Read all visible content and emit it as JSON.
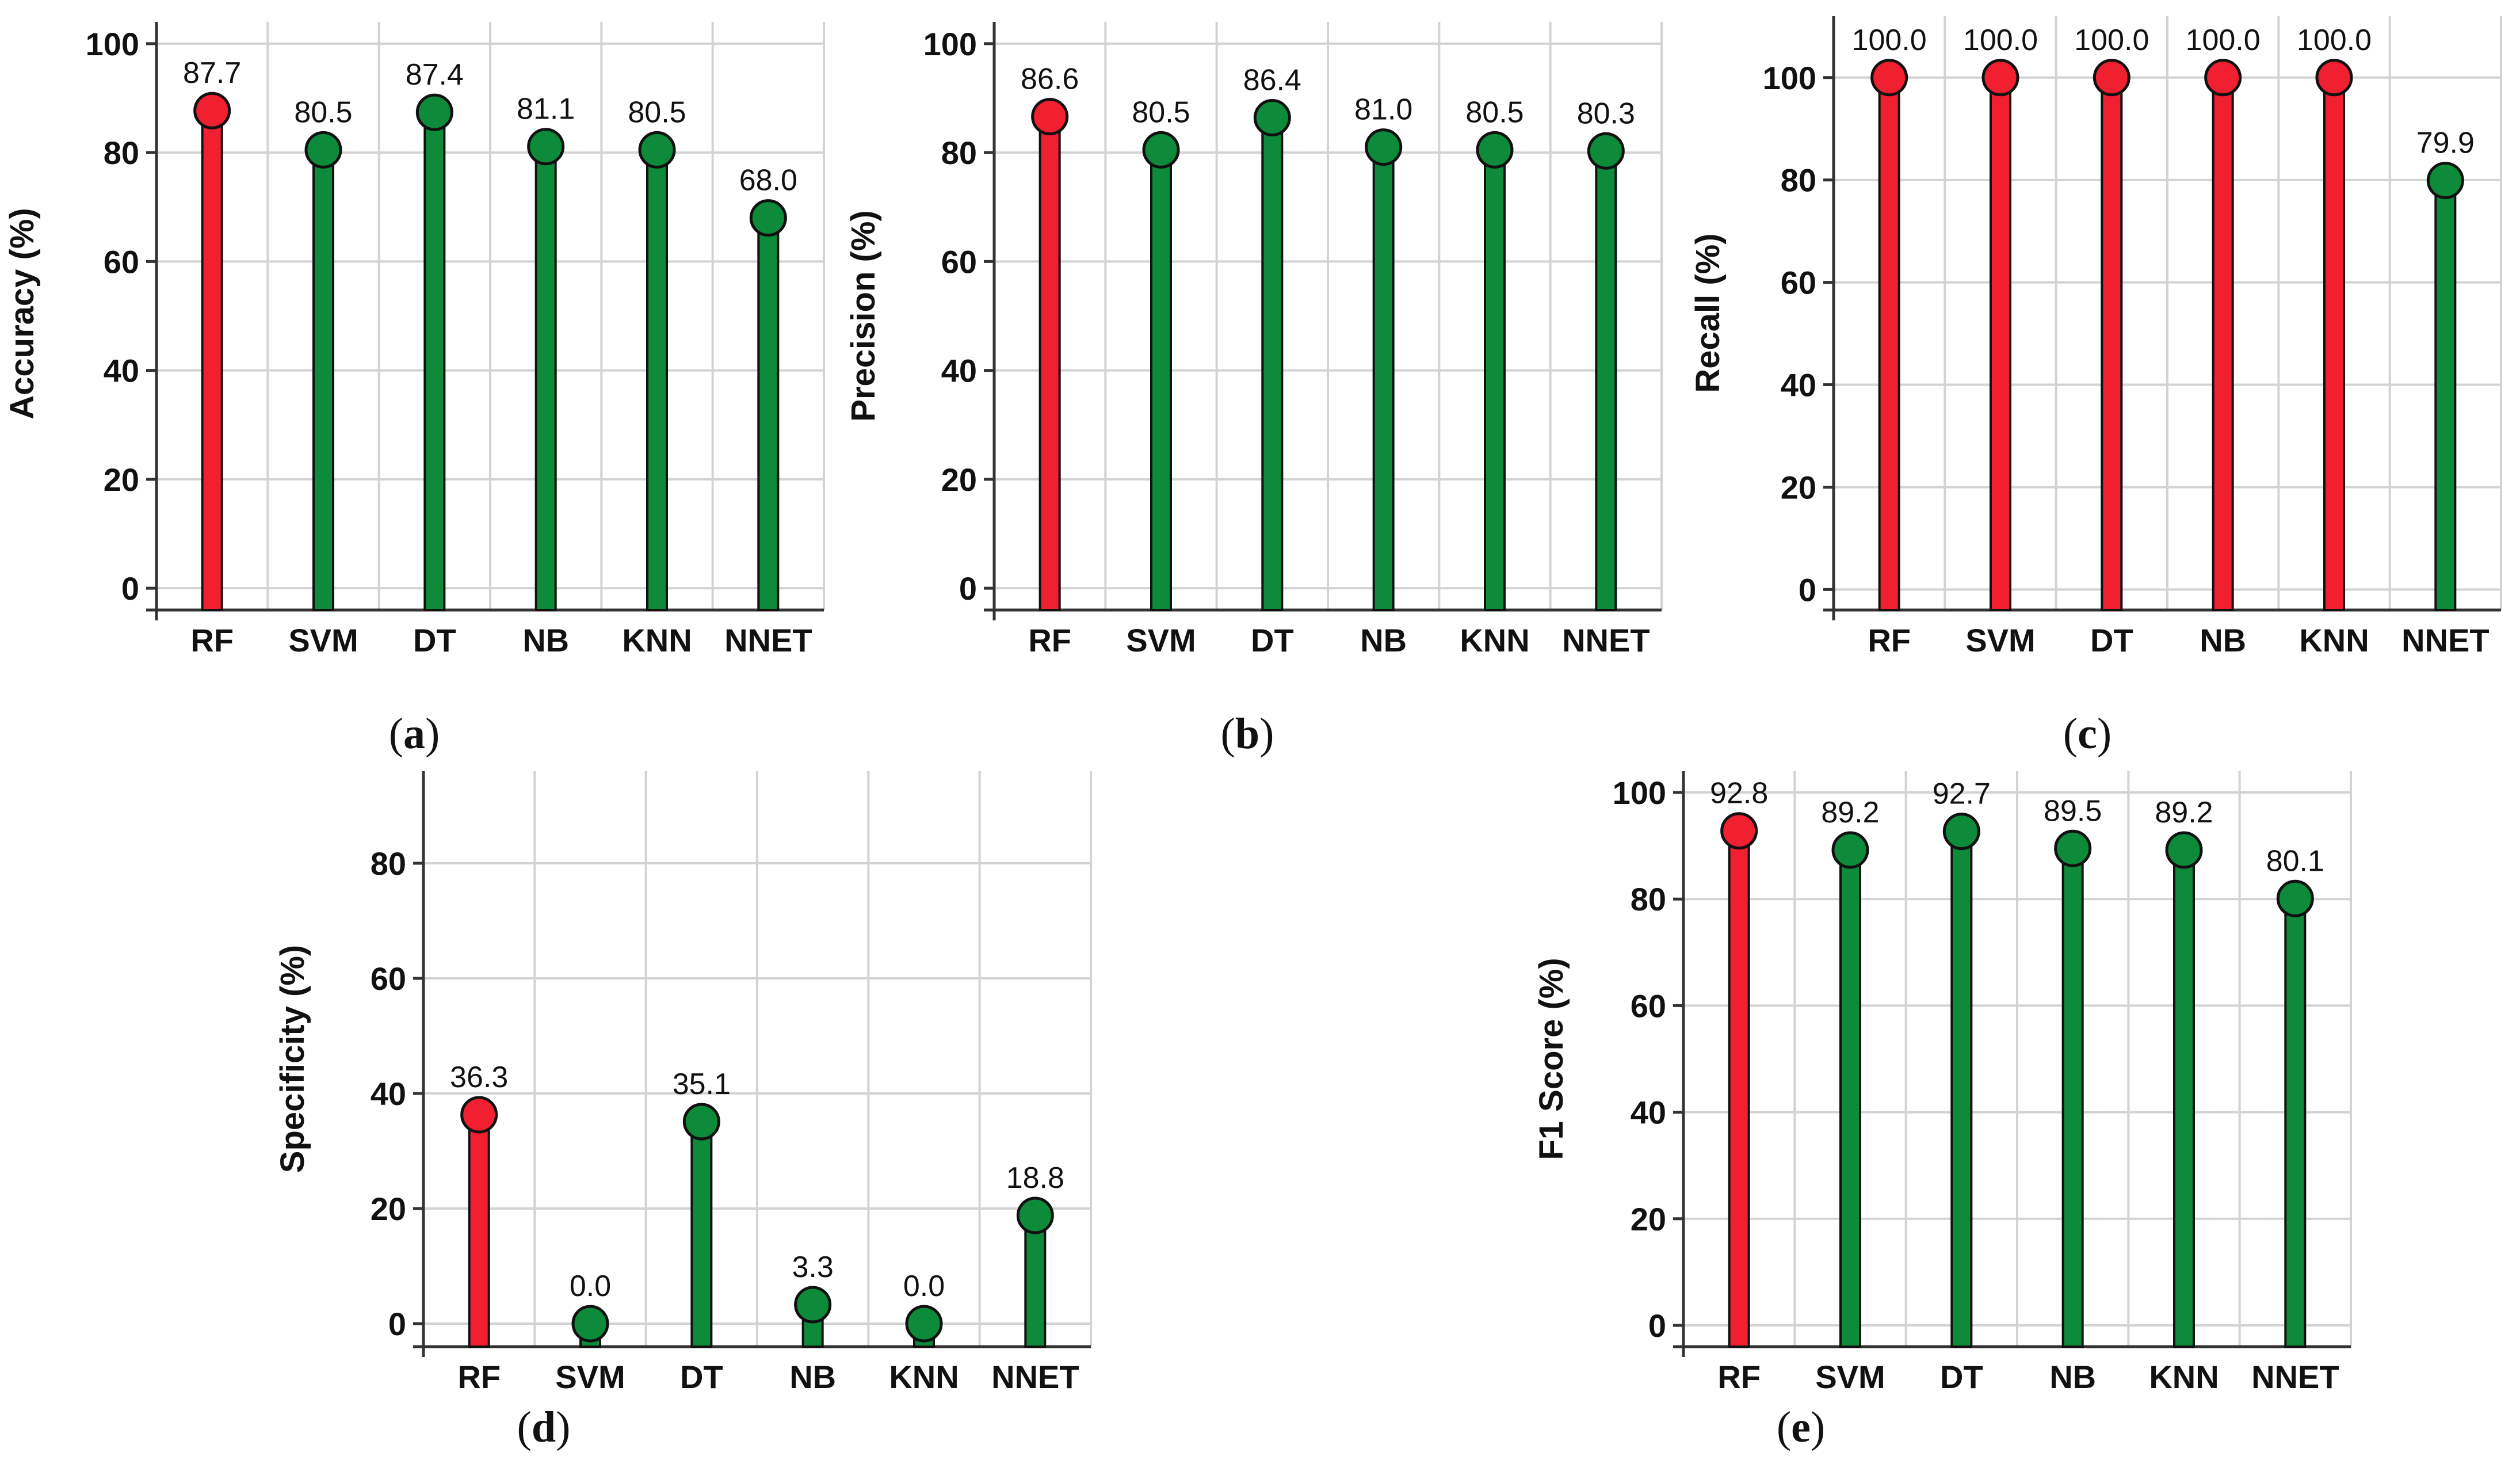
{
  "colors": {
    "highlight": "#f02030",
    "normal": "#0d8a3a",
    "grid": "#d3d3d3",
    "axis": "#333333",
    "outline": "#111111"
  },
  "chart_data": [
    {
      "type": "lollipop",
      "panel": "a",
      "panel_label": "(a)",
      "ylabel": "Accuracy (%)",
      "categories": [
        "RF",
        "SVM",
        "DT",
        "NB",
        "KNN",
        "NNET"
      ],
      "values": [
        87.7,
        80.5,
        87.4,
        81.1,
        80.5,
        68.0
      ],
      "value_labels": [
        "87.7",
        "80.5",
        "87.4",
        "81.1",
        "80.5",
        "68.0"
      ],
      "highlight": [
        true,
        false,
        false,
        false,
        false,
        false
      ],
      "yticks": [
        0,
        20,
        40,
        60,
        80,
        100
      ],
      "ylim": [
        -4,
        104
      ],
      "grid": true
    },
    {
      "type": "lollipop",
      "panel": "b",
      "panel_label": "(b)",
      "ylabel": "Precision (%)",
      "categories": [
        "RF",
        "SVM",
        "DT",
        "NB",
        "KNN",
        "NNET"
      ],
      "values": [
        86.6,
        80.5,
        86.4,
        81.0,
        80.5,
        80.3
      ],
      "value_labels": [
        "86.6",
        "80.5",
        "86.4",
        "81.0",
        "80.5",
        "80.3"
      ],
      "highlight": [
        true,
        false,
        false,
        false,
        false,
        false
      ],
      "yticks": [
        0,
        20,
        40,
        60,
        80,
        100
      ],
      "ylim": [
        -4,
        104
      ],
      "grid": true
    },
    {
      "type": "lollipop",
      "panel": "c",
      "panel_label": "(c)",
      "ylabel": "Recall (%)",
      "categories": [
        "RF",
        "SVM",
        "DT",
        "NB",
        "KNN",
        "NNET"
      ],
      "values": [
        100.0,
        100.0,
        100.0,
        100.0,
        100.0,
        79.9
      ],
      "value_labels": [
        "100.0",
        "100.0",
        "100.0",
        "100.0",
        "100.0",
        "79.9"
      ],
      "highlight": [
        true,
        true,
        true,
        true,
        true,
        false
      ],
      "yticks": [
        0,
        20,
        40,
        60,
        80,
        100
      ],
      "ylim": [
        -4,
        112
      ],
      "grid": true
    },
    {
      "type": "lollipop",
      "panel": "d",
      "panel_label": "(d)",
      "ylabel": "Specificity (%)",
      "categories": [
        "RF",
        "SVM",
        "DT",
        "NB",
        "KNN",
        "NNET"
      ],
      "values": [
        36.3,
        0.0,
        35.1,
        3.3,
        0.0,
        18.8
      ],
      "value_labels": [
        "36.3",
        "0.0",
        "35.1",
        "3.3",
        "0.0",
        "18.8"
      ],
      "highlight": [
        true,
        false,
        false,
        false,
        false,
        false
      ],
      "yticks": [
        0,
        20,
        40,
        60,
        80
      ],
      "ylim": [
        -4,
        96
      ],
      "grid": true
    },
    {
      "type": "lollipop",
      "panel": "e",
      "panel_label": "(e)",
      "ylabel": "F1 Score (%)",
      "categories": [
        "RF",
        "SVM",
        "DT",
        "NB",
        "KNN",
        "NNET"
      ],
      "values": [
        92.8,
        89.2,
        92.7,
        89.5,
        89.2,
        80.1
      ],
      "value_labels": [
        "92.8",
        "89.2",
        "92.7",
        "89.5",
        "89.2",
        "80.1"
      ],
      "highlight": [
        true,
        false,
        false,
        false,
        false,
        false
      ],
      "yticks": [
        0,
        20,
        40,
        60,
        80,
        100
      ],
      "ylim": [
        -4,
        104
      ],
      "grid": true
    }
  ]
}
